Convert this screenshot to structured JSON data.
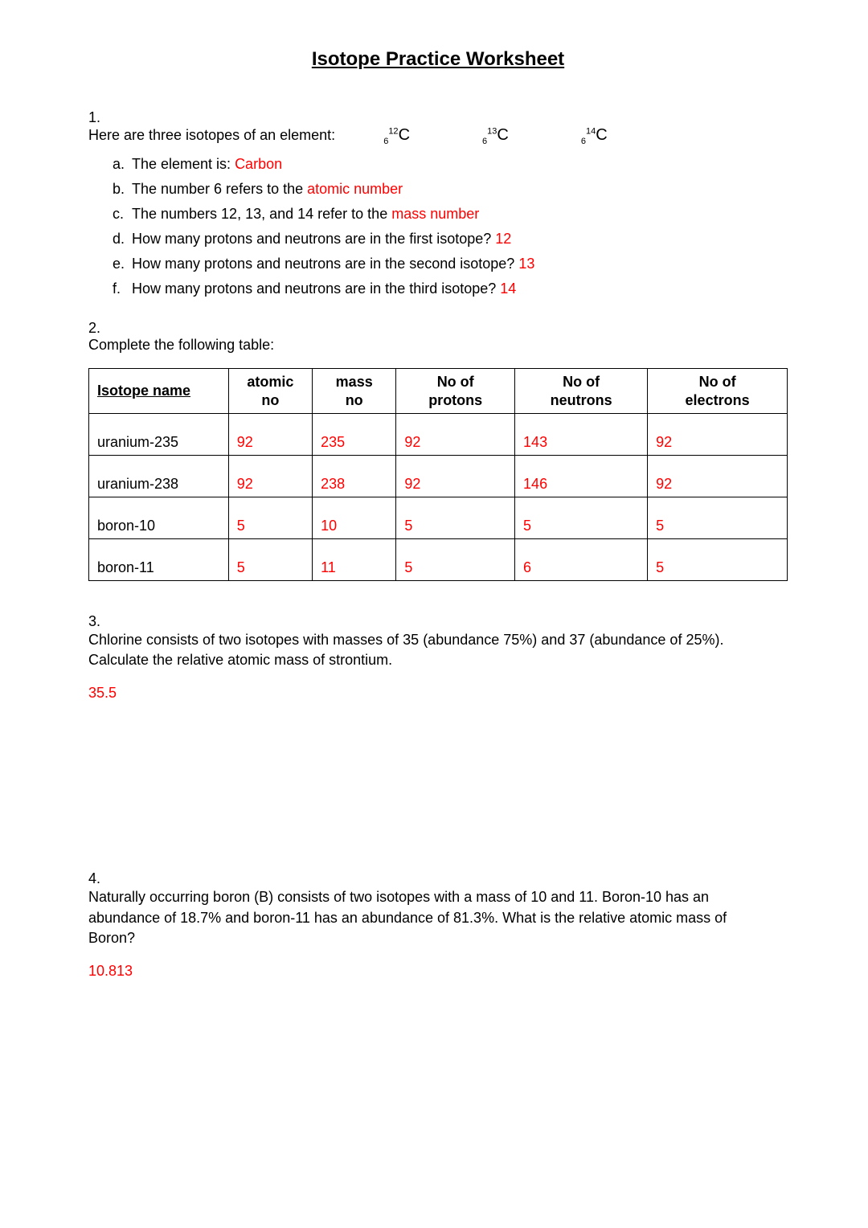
{
  "title": "Isotope Practice Worksheet",
  "colors": {
    "answer": "#ff0000",
    "text": "#000000",
    "bg": "#ffffff"
  },
  "q1": {
    "num": "1.",
    "stem": "Here are three isotopes of an element:",
    "isotopes": [
      {
        "sub": "6",
        "sup": "12",
        "sym": "C"
      },
      {
        "sub": "6",
        "sup": "13",
        "sym": "C"
      },
      {
        "sub": "6",
        "sup": "14",
        "sym": "C"
      }
    ],
    "items": [
      {
        "l": "a.",
        "t": "The element is: ",
        "a": "Carbon"
      },
      {
        "l": "b.",
        "t": "The number 6 refers to the ",
        "a": "atomic number"
      },
      {
        "l": "c.",
        "t": "The numbers 12, 13, and 14 refer to the ",
        "a": "mass number"
      },
      {
        "l": "d.",
        "t": "How many protons and neutrons are in the first isotope?  ",
        "a": "12"
      },
      {
        "l": "e.",
        "t": "How many protons and neutrons are in the second isotope?  ",
        "a": "13"
      },
      {
        "l": "f.",
        "t": "How many protons and neutrons are in the third isotope? ",
        "a": "14"
      }
    ]
  },
  "q2": {
    "num": "2.",
    "stem": "Complete the following table:",
    "headers": [
      "Isotope name",
      "atomic no",
      "mass no",
      "No of protons",
      "No of neutrons",
      "No of electrons"
    ],
    "rows": [
      {
        "name": "uranium-235",
        "an": "92",
        "mn": "235",
        "p": "92",
        "n": "143",
        "e": "92"
      },
      {
        "name": "uranium-238",
        "an": "92",
        "mn": "238",
        "p": "92",
        "n": "146",
        "e": "92"
      },
      {
        "name": "boron-10",
        "an": "5",
        "mn": "10",
        "p": "5",
        "n": "5",
        "e": "5"
      },
      {
        "name": "boron-11",
        "an": "5",
        "mn": "11",
        "p": "5",
        "n": "6",
        "e": "5"
      }
    ]
  },
  "q3": {
    "num": "3.",
    "text": "Chlorine consists of two isotopes with masses of 35 (abundance 75%) and 37 (abundance of 25%). Calculate the relative atomic mass of strontium.",
    "answer": "35.5"
  },
  "q4": {
    "num": "4.",
    "text": "Naturally occurring boron (B) consists of two isotopes with a mass of 10 and 11.  Boron-10 has an abundance of 18.7% and boron-11 has an abundance of 81.3%.  What is the relative atomic mass of Boron?",
    "answer": "10.813"
  }
}
